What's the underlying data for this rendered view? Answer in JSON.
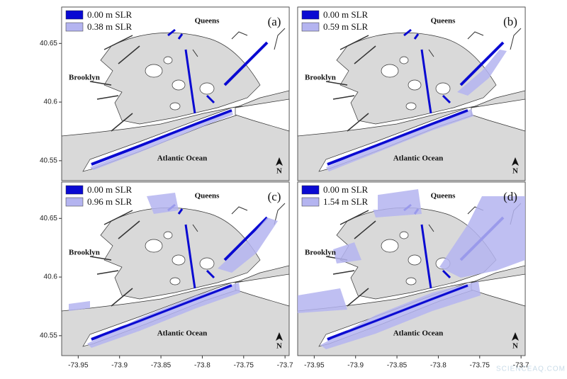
{
  "panels": [
    {
      "label": "(a)",
      "legend": [
        "0.00 m SLR",
        "0.38 m SLR"
      ],
      "places": [
        "Queens",
        "Brooklyn",
        "Atlantic Ocean"
      ],
      "north": "N"
    },
    {
      "label": "(b)",
      "legend": [
        "0.00 m SLR",
        "0.59 m SLR"
      ],
      "places": [
        "Queens",
        "Brooklyn",
        "Atlantic Ocean"
      ],
      "north": "N"
    },
    {
      "label": "(c)",
      "legend": [
        "0.00 m SLR",
        "0.96 m SLR"
      ],
      "places": [
        "Queens",
        "Brooklyn",
        "Atlantic Ocean"
      ],
      "north": "N"
    },
    {
      "label": "(d)",
      "legend": [
        "0.00 m SLR",
        "1.54 m SLR"
      ],
      "places": [
        "Queens",
        "Brooklyn",
        "Atlantic Ocean"
      ],
      "north": "N"
    }
  ],
  "legend_colors": [
    "#0a0ad2",
    "#b4b4f0"
  ],
  "lat_range": [
    40.533,
    40.681
  ],
  "lat_ticks": [
    40.65,
    40.6,
    40.55
  ],
  "lon_range": [
    -73.97,
    -73.695
  ],
  "lon_ticks": [
    -73.95,
    -73.9,
    -73.85,
    -73.8,
    -73.75,
    -73.7
  ],
  "watermark": "SCIENCEAQ.COM"
}
